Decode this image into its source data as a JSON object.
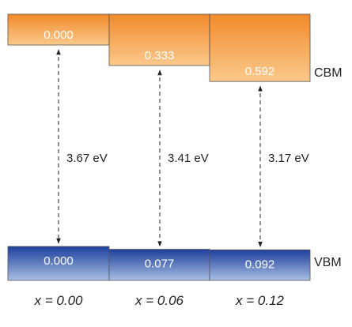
{
  "colors": {
    "cbm_top": "#f28a2b",
    "cbm_bottom": "#fbc98c",
    "vbm_top": "#1c3f9c",
    "vbm_bottom": "#a9bfe3",
    "stroke": "#555555",
    "arrow": "#222222",
    "text_dark": "#222222",
    "text_light": "#ffffff"
  },
  "band_labels": {
    "cbm": "CBM",
    "vbm": "VBM"
  },
  "columns": [
    {
      "composition": "x = 0.00",
      "cbm_offset": "0.000",
      "vbm_offset": "0.000",
      "gap": "3.67 eV",
      "cbm_shift_ev": 0.0,
      "vbm_shift_ev": 0.0
    },
    {
      "composition": "x = 0.06",
      "cbm_offset": "0.333",
      "vbm_offset": "0.077",
      "gap": "3.41 eV",
      "cbm_shift_ev": 0.333,
      "vbm_shift_ev": 0.077
    },
    {
      "composition": "x = 0.12",
      "cbm_offset": "0.592",
      "vbm_offset": "0.092",
      "gap": "3.17 eV",
      "cbm_shift_ev": 0.592,
      "vbm_shift_ev": 0.092
    }
  ]
}
